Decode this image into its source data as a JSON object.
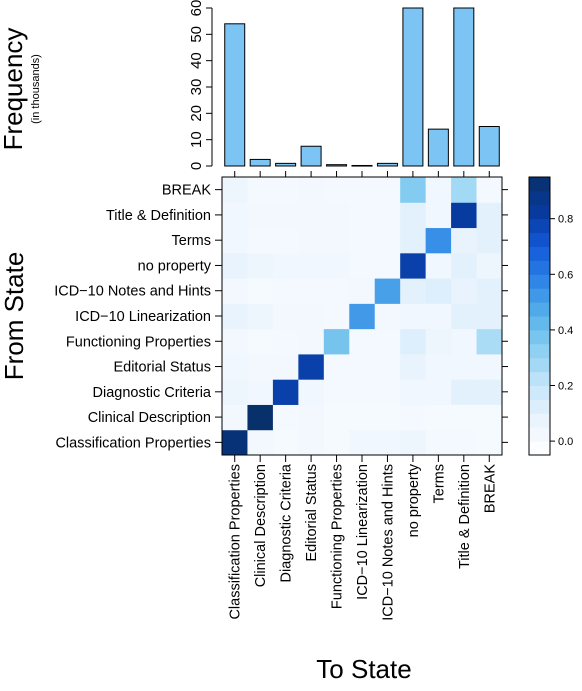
{
  "chart_data": [
    {
      "type": "bar",
      "ylabel": "Frequency",
      "ylabel_sub": "(in thousands)",
      "ylim": [
        0,
        60
      ],
      "yticks": [
        "0",
        "10",
        "20",
        "30",
        "40",
        "50",
        "60"
      ],
      "categories": [
        "Classification Properties",
        "Clinical Description",
        "Diagnostic Criteria",
        "Editorial Status",
        "Functioning Properties",
        "ICD−10 Linearization",
        "ICD−10 Notes and Hints",
        "no property",
        "Terms",
        "Title & Definition",
        "BREAK"
      ],
      "values": [
        54,
        2.5,
        1,
        7.5,
        0.5,
        0.2,
        1,
        60,
        14,
        60,
        15
      ],
      "colors": {
        "bar_fill": "#7cc4f4",
        "bar_stroke": "#000000"
      }
    },
    {
      "type": "heatmap",
      "xlabel": "To State",
      "ylabel": "From State",
      "x_categories": [
        "Classification Properties",
        "Clinical Description",
        "Diagnostic Criteria",
        "Editorial Status",
        "Functioning Properties",
        "ICD−10 Linearization",
        "ICD−10 Notes and Hints",
        "no property",
        "Terms",
        "Title & Definition",
        "BREAK"
      ],
      "y_categories_bottom_to_top": [
        "Classification Properties",
        "Clinical Description",
        "Diagnostic Criteria",
        "Editorial Status",
        "Functioning Properties",
        "ICD−10 Linearization",
        "ICD−10 Notes and Hints",
        "no property",
        "Terms",
        "Title & Definition",
        "BREAK"
      ],
      "rows_bottom_to_top": [
        [
          0.92,
          0.03,
          0.01,
          0.03,
          0.01,
          0.04,
          0.04,
          0.06,
          0.02,
          0.02,
          0.01
        ],
        [
          0.03,
          0.95,
          0.02,
          0.03,
          0.01,
          0.01,
          0.01,
          0.02,
          0.01,
          0.01,
          0.01
        ],
        [
          0.06,
          0.04,
          0.8,
          0.04,
          0.02,
          0.02,
          0.02,
          0.04,
          0.04,
          0.1,
          0.1
        ],
        [
          0.04,
          0.03,
          0.03,
          0.8,
          0.02,
          0.02,
          0.02,
          0.08,
          0.04,
          0.04,
          0.04
        ],
        [
          0.03,
          0.01,
          0.02,
          0.03,
          0.38,
          0.02,
          0.02,
          0.12,
          0.06,
          0.04,
          0.26
        ],
        [
          0.08,
          0.06,
          0.03,
          0.03,
          0.02,
          0.52,
          0.03,
          0.04,
          0.04,
          0.1,
          0.1
        ],
        [
          0.03,
          0.01,
          0.02,
          0.02,
          0.02,
          0.03,
          0.5,
          0.1,
          0.12,
          0.08,
          0.1
        ],
        [
          0.08,
          0.05,
          0.04,
          0.04,
          0.04,
          0.02,
          0.02,
          0.8,
          0.04,
          0.1,
          0.06
        ],
        [
          0.04,
          0.02,
          0.02,
          0.03,
          0.03,
          0.02,
          0.02,
          0.1,
          0.55,
          0.08,
          0.1
        ],
        [
          0.04,
          0.03,
          0.03,
          0.03,
          0.03,
          0.02,
          0.02,
          0.1,
          0.04,
          0.82,
          0.1
        ],
        [
          0.06,
          0.02,
          0.02,
          0.03,
          0.02,
          0.02,
          0.02,
          0.35,
          0.04,
          0.28,
          0.02
        ]
      ],
      "scale": {
        "min": -0.05,
        "max": 0.95,
        "ticks": [
          "0.0",
          "0.2",
          "0.4",
          "0.6",
          "0.8"
        ]
      },
      "colors": {
        "low": "#ffffff",
        "high": "#08306b"
      }
    }
  ]
}
